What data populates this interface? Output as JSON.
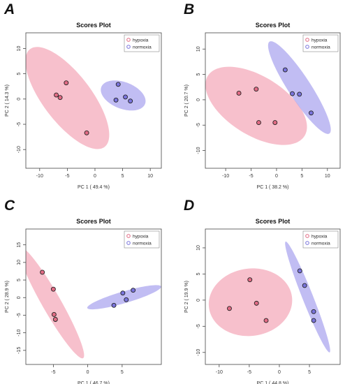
{
  "chart_data": [
    {
      "panel_label": "A",
      "type": "scatter",
      "title": "Scores Plot",
      "xlabel": "PC 1 ( 49.4 %)",
      "ylabel": "PC 2 ( 14.3 %)",
      "xlim": [
        -12.5,
        12
      ],
      "ylim": [
        -13.7,
        13.1
      ],
      "xticks": [
        -10,
        -5,
        0,
        5,
        10
      ],
      "yticks": [
        -10,
        -5,
        0,
        5,
        10
      ],
      "xtick_labels": [
        "-10",
        "-5",
        "0",
        "5",
        "10"
      ],
      "ytick_labels": [
        "-10",
        "-5",
        "0",
        "5",
        "10"
      ],
      "legend_position": "top-right",
      "series": [
        {
          "name": "hypoxia",
          "color": "#f4a7b9",
          "fill": "#e16b84",
          "points": [
            [
              -5.2,
              3.2
            ],
            [
              -7.0,
              0.8
            ],
            [
              -6.3,
              0.3
            ],
            [
              -1.5,
              -6.7
            ]
          ],
          "ellipse": {
            "cx": -5.0,
            "cy": 0.2,
            "rx": 11.8,
            "ry": 4.5,
            "angle_deg": -56
          }
        },
        {
          "name": "normoxia",
          "color": "#a9a3ee",
          "fill": "#7a74dc",
          "points": [
            [
              4.2,
              2.9
            ],
            [
              5.5,
              0.4
            ],
            [
              3.8,
              -0.2
            ],
            [
              6.4,
              -0.4
            ]
          ],
          "ellipse": {
            "cx": 5.1,
            "cy": 0.7,
            "rx": 4.3,
            "ry": 2.6,
            "angle_deg": -25
          }
        }
      ]
    },
    {
      "panel_label": "B",
      "type": "scatter",
      "title": "Scores Plot",
      "xlabel": "PC 1 ( 38.2 %)",
      "ylabel": "PC 2 ( 20.7 %)",
      "xlim": [
        -14,
        12.5
      ],
      "ylim": [
        -13.5,
        13.2
      ],
      "xticks": [
        -10,
        -5,
        0,
        5,
        10
      ],
      "yticks": [
        -10,
        -5,
        0,
        5,
        10
      ],
      "xtick_labels": [
        "-10",
        "-5",
        "0",
        "5",
        "10"
      ],
      "ytick_labels": [
        "-10",
        "-5",
        "0",
        "5",
        "10"
      ],
      "legend_position": "top-right",
      "series": [
        {
          "name": "hypoxia",
          "color": "#f4a7b9",
          "fill": "#e16b84",
          "points": [
            [
              -7.4,
              1.3
            ],
            [
              -4.0,
              2.1
            ],
            [
              -3.5,
              -4.5
            ],
            [
              -0.3,
              -4.5
            ]
          ],
          "ellipse": {
            "cx": -4.0,
            "cy": -1.2,
            "rx": 11.2,
            "ry": 5.8,
            "angle_deg": -32
          }
        },
        {
          "name": "normoxia",
          "color": "#a9a3ee",
          "fill": "#7a74dc",
          "points": [
            [
              1.7,
              5.9
            ],
            [
              3.1,
              1.2
            ],
            [
              4.5,
              1.1
            ],
            [
              6.8,
              -2.6
            ]
          ],
          "ellipse": {
            "cx": 4.5,
            "cy": 2.4,
            "rx": 10.8,
            "ry": 2.2,
            "angle_deg": -57
          }
        }
      ]
    },
    {
      "panel_label": "C",
      "type": "scatter",
      "title": "Scores Plot",
      "xlabel": "PC 1 ( 46.7 %)",
      "ylabel": "PC 2 ( 28.9 %)",
      "xlim": [
        -9,
        10.7
      ],
      "ylim": [
        -19,
        19.5
      ],
      "xticks": [
        -5,
        0,
        5
      ],
      "yticks": [
        -15,
        -10,
        -5,
        0,
        5,
        10,
        15
      ],
      "xtick_labels": [
        "-5",
        "0",
        "5"
      ],
      "ytick_labels": [
        "-15",
        "-10",
        "-5",
        "0",
        "5",
        "10",
        "15"
      ],
      "legend_position": "top-right",
      "series": [
        {
          "name": "hypoxia",
          "color": "#f4a7b9",
          "fill": "#e16b84",
          "points": [
            [
              -6.6,
              7.2
            ],
            [
              -5.0,
              2.4
            ],
            [
              -4.9,
              -4.8
            ],
            [
              -4.7,
              -6.2
            ]
          ],
          "ellipse": {
            "cx": -5.3,
            "cy": -1.4,
            "rx": 16.5,
            "ry": 1.5,
            "angle_deg": -74
          }
        },
        {
          "name": "normoxia",
          "color": "#a9a3ee",
          "fill": "#7a74dc",
          "points": [
            [
              3.8,
              -2.2
            ],
            [
              5.1,
              1.3
            ],
            [
              5.6,
              -0.6
            ],
            [
              6.6,
              2.1
            ]
          ],
          "ellipse": {
            "cx": 5.3,
            "cy": 0.1,
            "rx": 6.2,
            "ry": 1.5,
            "angle_deg": 31
          }
        }
      ]
    },
    {
      "panel_label": "D",
      "type": "scatter",
      "title": "Scores Plot",
      "xlabel": "PC 1 ( 44.8 %)",
      "ylabel": "PC 2 ( 19.9 %)",
      "xlim": [
        -12.3,
        10.1
      ],
      "ylim": [
        -12.3,
        13.6
      ],
      "xticks": [
        -10,
        -5,
        0,
        5
      ],
      "yticks": [
        -10,
        -5,
        0,
        5,
        10
      ],
      "xtick_labels": [
        "-10",
        "-5",
        "0",
        "5"
      ],
      "ytick_labels": [
        "-10",
        "-5",
        "0",
        "5",
        "10"
      ],
      "legend_position": "top-right",
      "series": [
        {
          "name": "hypoxia",
          "color": "#f4a7b9",
          "fill": "#e16b84",
          "points": [
            [
              -8.3,
              -1.6
            ],
            [
              -4.9,
              3.9
            ],
            [
              -3.8,
              -0.6
            ],
            [
              -2.2,
              -3.9
            ]
          ],
          "ellipse": {
            "cx": -4.8,
            "cy": -0.4,
            "rx": 7.0,
            "ry": 6.4,
            "angle_deg": 20
          }
        },
        {
          "name": "normoxia",
          "color": "#a9a3ee",
          "fill": "#7a74dc",
          "points": [
            [
              3.4,
              5.6
            ],
            [
              4.2,
              2.8
            ],
            [
              5.7,
              -2.2
            ],
            [
              5.7,
              -3.9
            ]
          ],
          "ellipse": {
            "cx": 4.7,
            "cy": 0.6,
            "rx": 11.2,
            "ry": 0.9,
            "angle_deg": -71
          }
        }
      ]
    }
  ]
}
